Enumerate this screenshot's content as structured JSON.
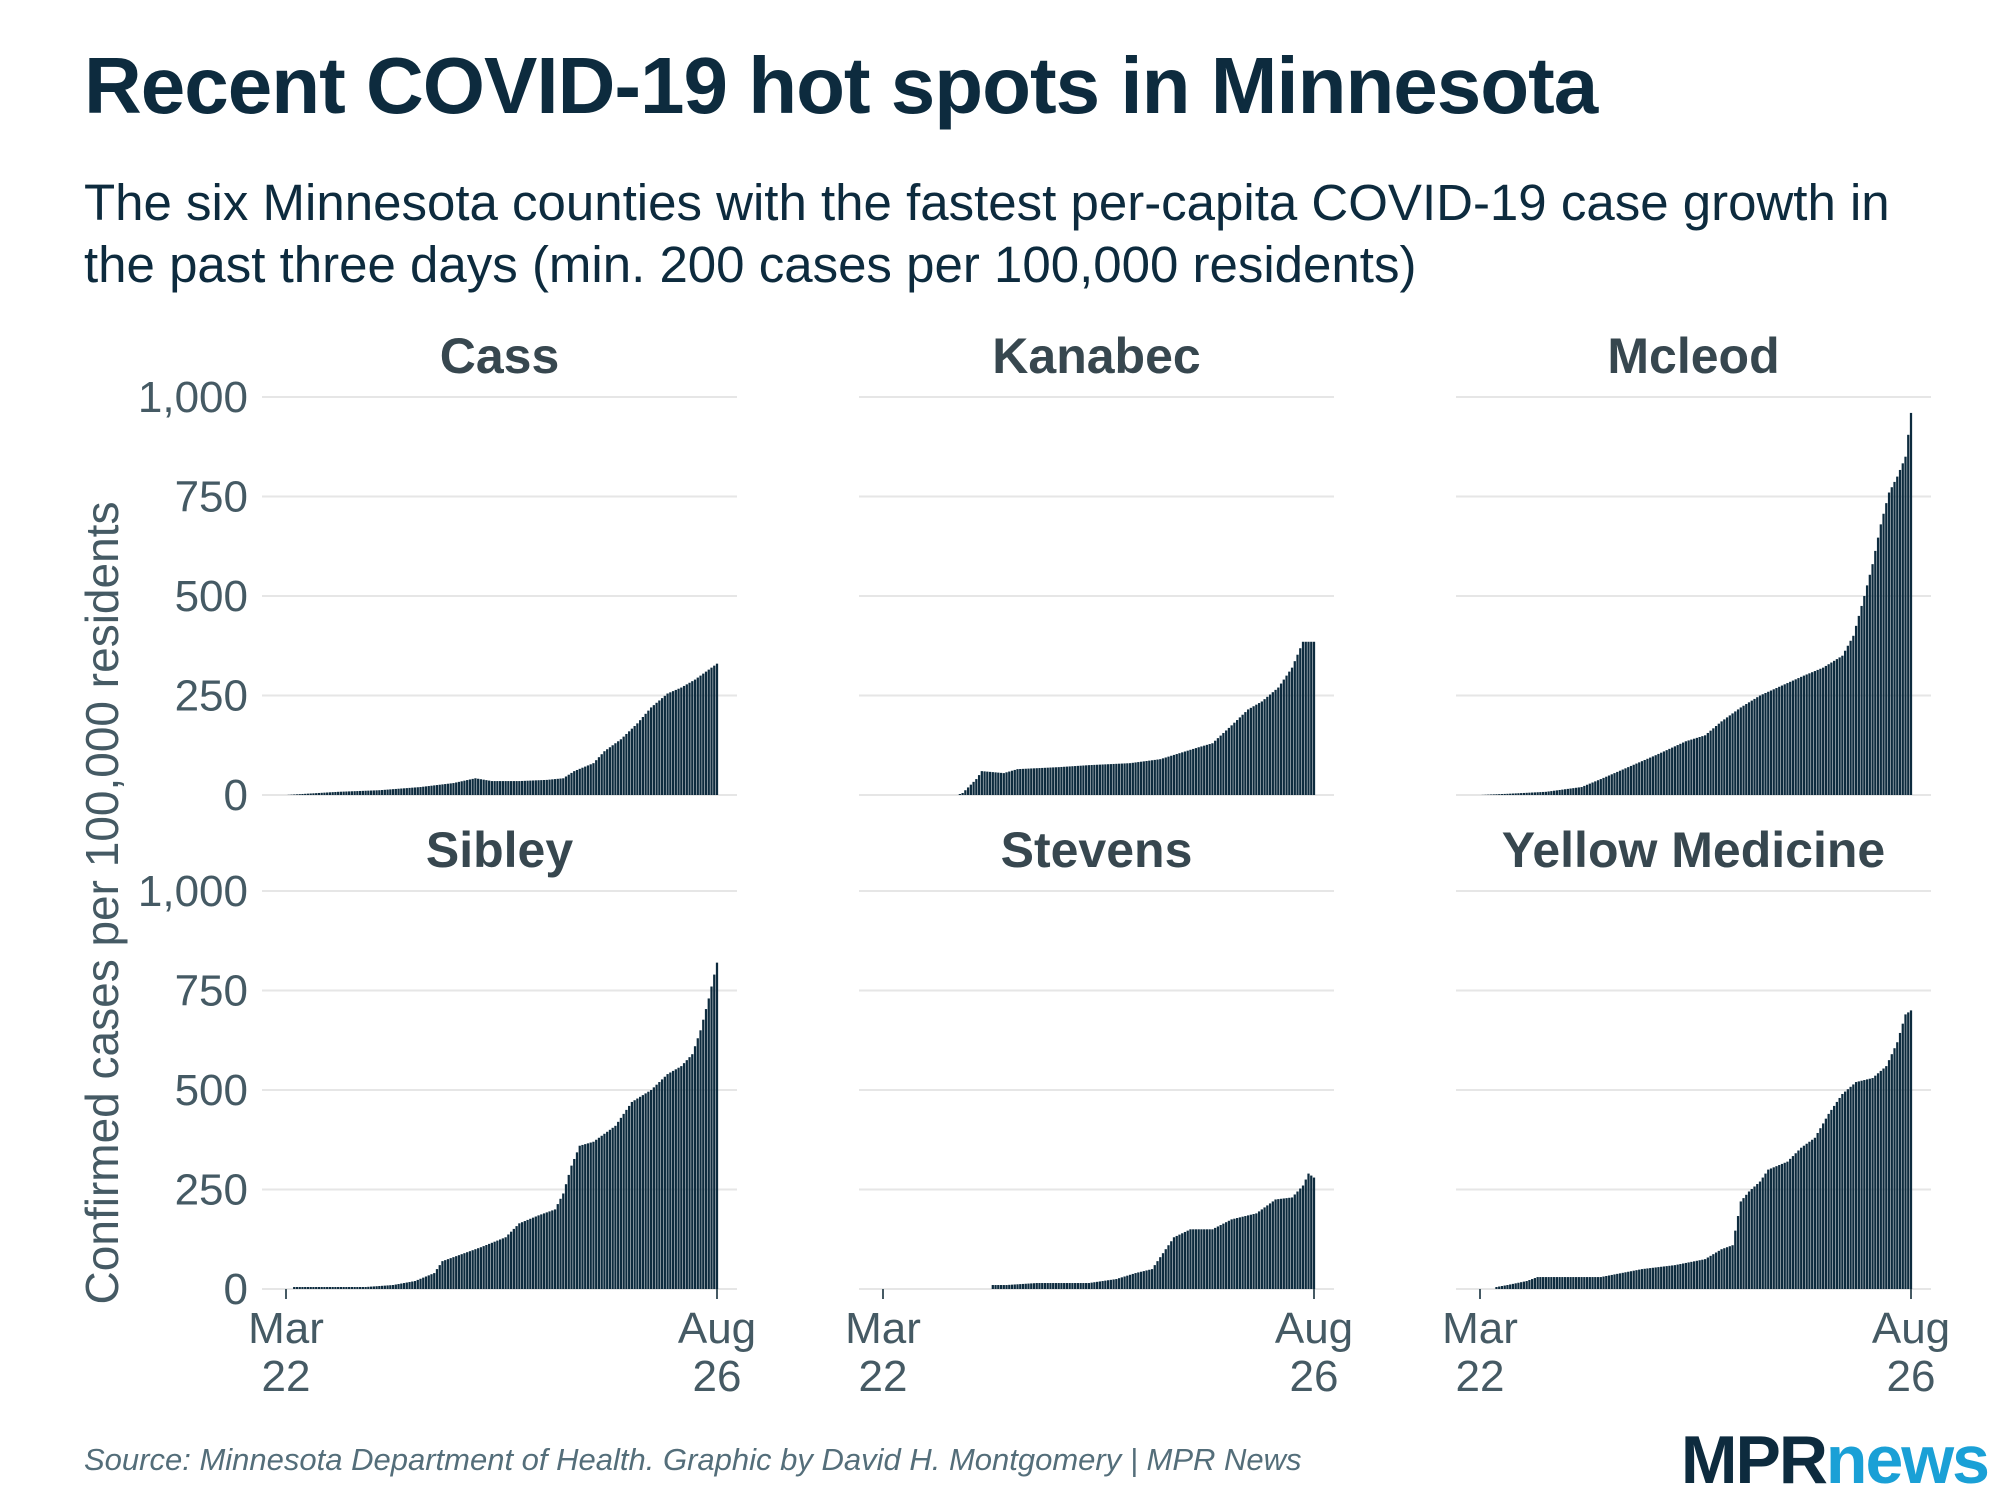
{
  "title": "Recent COVID-19 hot spots in Minnesota",
  "subtitle": "The six Minnesota counties with the fastest per-capita COVID-19 case growth in the past three days (min. 200 cases per 100,000 residents)",
  "source": "Source: Minnesota Department of Health. Graphic by David H. Montgomery | MPR News",
  "logo": {
    "part1": "MPR",
    "part2": "news"
  },
  "colors": {
    "bar": "#0d2b3e",
    "grid": "#e6e6e6",
    "text": "#455a64",
    "logo_news": "#1aa0d6"
  },
  "chart_data": {
    "type": "bar",
    "ylabel": "Confirmed cases per 100,000 residents",
    "ylim": [
      0,
      1000
    ],
    "yticks": [
      0,
      250,
      500,
      750,
      1000
    ],
    "ytick_labels": [
      "0",
      "250",
      "500",
      "750",
      "1,000"
    ],
    "xlim": [
      "2020-03-22",
      "2020-08-26"
    ],
    "xticks": [
      {
        "date": "2020-03-22",
        "label_line1": "Mar",
        "label_line2": "22"
      },
      {
        "date": "2020-08-26",
        "label_line1": "Aug",
        "label_line2": "26"
      }
    ],
    "grid": true,
    "panels": [
      {
        "name": "Cass",
        "points": [
          [
            "2020-03-22",
            0
          ],
          [
            "2020-03-29",
            3
          ],
          [
            "2020-04-10",
            8
          ],
          [
            "2020-04-25",
            12
          ],
          [
            "2020-05-10",
            20
          ],
          [
            "2020-05-22",
            30
          ],
          [
            "2020-05-30",
            42
          ],
          [
            "2020-06-05",
            35
          ],
          [
            "2020-06-15",
            35
          ],
          [
            "2020-06-25",
            38
          ],
          [
            "2020-07-01",
            42
          ],
          [
            "2020-07-05",
            60
          ],
          [
            "2020-07-12",
            80
          ],
          [
            "2020-07-16",
            110
          ],
          [
            "2020-07-22",
            140
          ],
          [
            "2020-07-28",
            180
          ],
          [
            "2020-08-02",
            220
          ],
          [
            "2020-08-08",
            255
          ],
          [
            "2020-08-13",
            270
          ],
          [
            "2020-08-18",
            290
          ],
          [
            "2020-08-22",
            310
          ],
          [
            "2020-08-26",
            330
          ]
        ]
      },
      {
        "name": "Kanabec",
        "points": [
          [
            "2020-04-18",
            0
          ],
          [
            "2020-04-20",
            5
          ],
          [
            "2020-04-25",
            40
          ],
          [
            "2020-04-27",
            60
          ],
          [
            "2020-05-05",
            55
          ],
          [
            "2020-05-10",
            65
          ],
          [
            "2020-05-25",
            70
          ],
          [
            "2020-06-05",
            75
          ],
          [
            "2020-06-20",
            80
          ],
          [
            "2020-07-01",
            90
          ],
          [
            "2020-07-08",
            105
          ],
          [
            "2020-07-15",
            120
          ],
          [
            "2020-07-20",
            130
          ],
          [
            "2020-07-27",
            175
          ],
          [
            "2020-08-02",
            215
          ],
          [
            "2020-08-07",
            235
          ],
          [
            "2020-08-13",
            270
          ],
          [
            "2020-08-18",
            320
          ],
          [
            "2020-08-22",
            385
          ],
          [
            "2020-08-26",
            385
          ]
        ]
      },
      {
        "name": "Mcleod",
        "points": [
          [
            "2020-03-22",
            0
          ],
          [
            "2020-04-01",
            3
          ],
          [
            "2020-04-15",
            8
          ],
          [
            "2020-04-28",
            20
          ],
          [
            "2020-05-05",
            40
          ],
          [
            "2020-05-15",
            70
          ],
          [
            "2020-05-25",
            100
          ],
          [
            "2020-06-05",
            135
          ],
          [
            "2020-06-12",
            150
          ],
          [
            "2020-06-18",
            185
          ],
          [
            "2020-06-25",
            220
          ],
          [
            "2020-07-02",
            250
          ],
          [
            "2020-07-10",
            275
          ],
          [
            "2020-07-18",
            300
          ],
          [
            "2020-07-25",
            320
          ],
          [
            "2020-08-01",
            350
          ],
          [
            "2020-08-05",
            400
          ],
          [
            "2020-08-09",
            500
          ],
          [
            "2020-08-12",
            580
          ],
          [
            "2020-08-15",
            680
          ],
          [
            "2020-08-18",
            760
          ],
          [
            "2020-08-21",
            800
          ],
          [
            "2020-08-24",
            850
          ],
          [
            "2020-08-26",
            960
          ]
        ]
      },
      {
        "name": "Sibley",
        "points": [
          [
            "2020-03-25",
            5
          ],
          [
            "2020-04-05",
            5
          ],
          [
            "2020-04-20",
            5
          ],
          [
            "2020-04-30",
            10
          ],
          [
            "2020-05-08",
            20
          ],
          [
            "2020-05-15",
            40
          ],
          [
            "2020-05-18",
            70
          ],
          [
            "2020-05-22",
            80
          ],
          [
            "2020-06-01",
            105
          ],
          [
            "2020-06-10",
            130
          ],
          [
            "2020-06-15",
            165
          ],
          [
            "2020-06-22",
            185
          ],
          [
            "2020-06-28",
            200
          ],
          [
            "2020-07-01",
            240
          ],
          [
            "2020-07-04",
            310
          ],
          [
            "2020-07-07",
            360
          ],
          [
            "2020-07-12",
            370
          ],
          [
            "2020-07-20",
            410
          ],
          [
            "2020-07-26",
            470
          ],
          [
            "2020-08-02",
            500
          ],
          [
            "2020-08-08",
            540
          ],
          [
            "2020-08-13",
            560
          ],
          [
            "2020-08-17",
            590
          ],
          [
            "2020-08-20",
            650
          ],
          [
            "2020-08-23",
            730
          ],
          [
            "2020-08-26",
            820
          ]
        ]
      },
      {
        "name": "Stevens",
        "points": [
          [
            "2020-05-01",
            10
          ],
          [
            "2020-05-06",
            10
          ],
          [
            "2020-05-17",
            15
          ],
          [
            "2020-05-25",
            15
          ],
          [
            "2020-06-05",
            15
          ],
          [
            "2020-06-15",
            25
          ],
          [
            "2020-06-22",
            40
          ],
          [
            "2020-06-28",
            50
          ],
          [
            "2020-07-02",
            90
          ],
          [
            "2020-07-06",
            130
          ],
          [
            "2020-07-12",
            150
          ],
          [
            "2020-07-20",
            150
          ],
          [
            "2020-07-27",
            175
          ],
          [
            "2020-08-05",
            190
          ],
          [
            "2020-08-12",
            225
          ],
          [
            "2020-08-18",
            230
          ],
          [
            "2020-08-22",
            260
          ],
          [
            "2020-08-24",
            290
          ],
          [
            "2020-08-26",
            280
          ]
        ]
      },
      {
        "name": "Yellow Medicine",
        "points": [
          [
            "2020-03-28",
            5
          ],
          [
            "2020-04-01",
            10
          ],
          [
            "2020-04-08",
            20
          ],
          [
            "2020-04-12",
            30
          ],
          [
            "2020-05-05",
            30
          ],
          [
            "2020-05-20",
            50
          ],
          [
            "2020-06-01",
            60
          ],
          [
            "2020-06-12",
            75
          ],
          [
            "2020-06-18",
            100
          ],
          [
            "2020-06-22",
            110
          ],
          [
            "2020-06-25",
            220
          ],
          [
            "2020-06-28",
            245
          ],
          [
            "2020-07-02",
            270
          ],
          [
            "2020-07-05",
            300
          ],
          [
            "2020-07-12",
            320
          ],
          [
            "2020-07-17",
            355
          ],
          [
            "2020-07-22",
            380
          ],
          [
            "2020-07-27",
            440
          ],
          [
            "2020-08-01",
            490
          ],
          [
            "2020-08-06",
            520
          ],
          [
            "2020-08-12",
            530
          ],
          [
            "2020-08-17",
            560
          ],
          [
            "2020-08-21",
            620
          ],
          [
            "2020-08-24",
            690
          ],
          [
            "2020-08-26",
            700
          ]
        ]
      }
    ]
  }
}
